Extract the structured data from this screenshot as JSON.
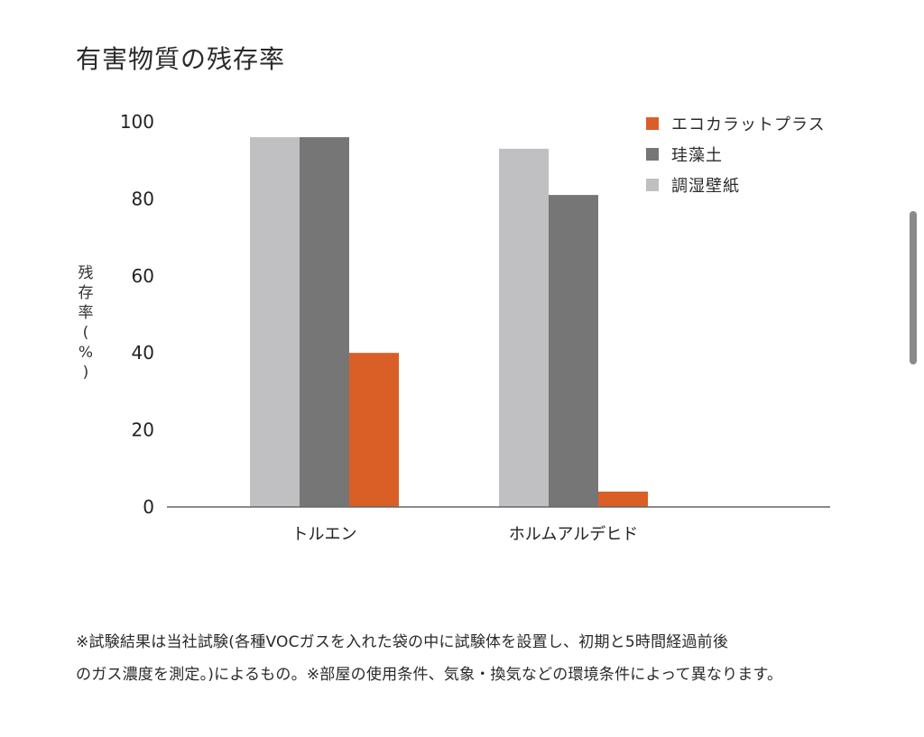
{
  "title": "有害物質の残存率",
  "footnote": {
    "line1": "※試験結果は当社試験(各種VOCガスを入れた袋の中に試験体を設置し、初期と5時間経過前後",
    "line2": "のガス濃度を測定。)によるもの。※部屋の使用条件、気象・換気などの環境条件によって異なります。"
  },
  "chart_data": {
    "type": "bar",
    "title": "有害物質の残存率",
    "ylabel": "残存率(%)",
    "xlabel": "",
    "categories": [
      "トルエン",
      "ホルムアルデヒド"
    ],
    "ylim": [
      0,
      100
    ],
    "yticks": [
      "0",
      "20",
      "40",
      "60",
      "80",
      "100"
    ],
    "grid": false,
    "legend_position": "top-right",
    "series": [
      {
        "name": "調湿壁紙",
        "color": "#c0c0c2",
        "values": [
          96,
          93
        ]
      },
      {
        "name": "珪藻土",
        "color": "#767676",
        "values": [
          96,
          81
        ]
      },
      {
        "name": "エコカラットプラス",
        "color": "#d95f27",
        "values": [
          40,
          4
        ]
      }
    ],
    "legend": [
      {
        "name": "エコカラットプラス",
        "color": "#d95f27"
      },
      {
        "name": "珪藻土",
        "color": "#767676"
      },
      {
        "name": "調湿壁紙",
        "color": "#c0c0c2"
      }
    ]
  }
}
